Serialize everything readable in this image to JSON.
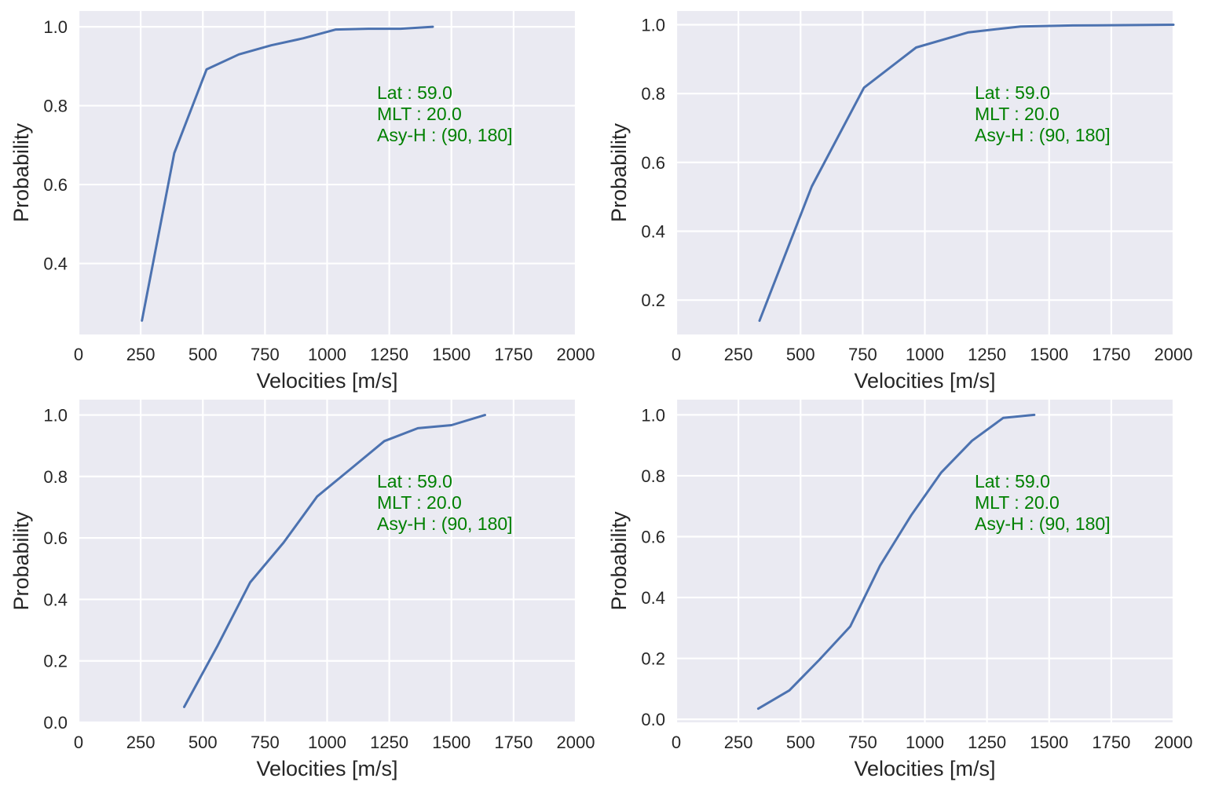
{
  "style": {
    "plot_background": "#eaeaf2",
    "grid_color": "#ffffff",
    "line_color": "#4c72b0",
    "annotation_color": "#008000",
    "text_color": "#262626"
  },
  "chart_data": [
    {
      "type": "line",
      "xlabel": "Velocities [m/s]",
      "ylabel": "Probability",
      "xlim": [
        0,
        2000
      ],
      "ylim": [
        0.22,
        1.04
      ],
      "xticks": [
        0,
        250,
        500,
        750,
        1000,
        1250,
        1500,
        1750,
        2000
      ],
      "yticks": [
        0.4,
        0.6,
        0.8,
        1.0
      ],
      "ytick_labels": [
        "0.4",
        "0.6",
        "0.8",
        "1.0"
      ],
      "grid": true,
      "annotation": [
        "Lat : 59.0",
        "MLT : 20.0",
        "Asy-H : (90, 180]"
      ],
      "series": [
        {
          "x": [
            255,
            385,
            515,
            645,
            775,
            905,
            1035,
            1165,
            1295,
            1425
          ],
          "y": [
            0.255,
            0.68,
            0.892,
            0.93,
            0.953,
            0.971,
            0.993,
            0.995,
            0.995,
            1.0
          ]
        }
      ]
    },
    {
      "type": "line",
      "xlabel": "Velocities [m/s]",
      "ylabel": "Probability",
      "xlim": [
        0,
        2000
      ],
      "ylim": [
        0.1,
        1.04
      ],
      "xticks": [
        0,
        250,
        500,
        750,
        1000,
        1250,
        1500,
        1750,
        2000
      ],
      "yticks": [
        0.2,
        0.4,
        0.6,
        0.8,
        1.0
      ],
      "ytick_labels": [
        "0.2",
        "0.4",
        "0.6",
        "0.8",
        "1.0"
      ],
      "grid": true,
      "annotation": [
        "Lat : 59.0",
        "MLT : 20.0",
        "Asy-H : (90, 180]"
      ],
      "series": [
        {
          "x": [
            335,
            545,
            755,
            965,
            1175,
            1385,
            1595,
            1805,
            2000
          ],
          "y": [
            0.14,
            0.53,
            0.817,
            0.934,
            0.978,
            0.995,
            0.998,
            0.999,
            1.0
          ]
        }
      ]
    },
    {
      "type": "line",
      "xlabel": "Velocities [m/s]",
      "ylabel": "Probability",
      "xlim": [
        0,
        2000
      ],
      "ylim": [
        0.0,
        1.05
      ],
      "xticks": [
        0,
        250,
        500,
        750,
        1000,
        1250,
        1500,
        1750,
        2000
      ],
      "yticks": [
        0.0,
        0.2,
        0.4,
        0.6,
        0.8,
        1.0
      ],
      "ytick_labels": [
        "0.0",
        "0.2",
        "0.4",
        "0.6",
        "0.8",
        "1.0"
      ],
      "grid": true,
      "annotation": [
        "Lat : 59.0",
        "MLT : 20.0",
        "Asy-H : (90, 180]"
      ],
      "series": [
        {
          "x": [
            425,
            560,
            690,
            825,
            960,
            1095,
            1230,
            1365,
            1500,
            1635
          ],
          "y": [
            0.05,
            0.25,
            0.455,
            0.585,
            0.735,
            0.825,
            0.915,
            0.957,
            0.967,
            1.0
          ]
        }
      ]
    },
    {
      "type": "line",
      "xlabel": "Velocities [m/s]",
      "ylabel": "Probability",
      "xlim": [
        0,
        2000
      ],
      "ylim": [
        -0.01,
        1.05
      ],
      "xticks": [
        0,
        250,
        500,
        750,
        1000,
        1250,
        1500,
        1750,
        2000
      ],
      "yticks": [
        0.0,
        0.2,
        0.4,
        0.6,
        0.8,
        1.0
      ],
      "ytick_labels": [
        "0.0",
        "0.2",
        "0.4",
        "0.6",
        "0.8",
        "1.0"
      ],
      "grid": true,
      "annotation": [
        "Lat : 59.0",
        "MLT : 20.0",
        "Asy-H : (90, 180]"
      ],
      "series": [
        {
          "x": [
            330,
            455,
            575,
            700,
            820,
            945,
            1065,
            1190,
            1315,
            1440
          ],
          "y": [
            0.035,
            0.095,
            0.195,
            0.305,
            0.505,
            0.67,
            0.81,
            0.915,
            0.99,
            1.0
          ]
        }
      ]
    }
  ]
}
